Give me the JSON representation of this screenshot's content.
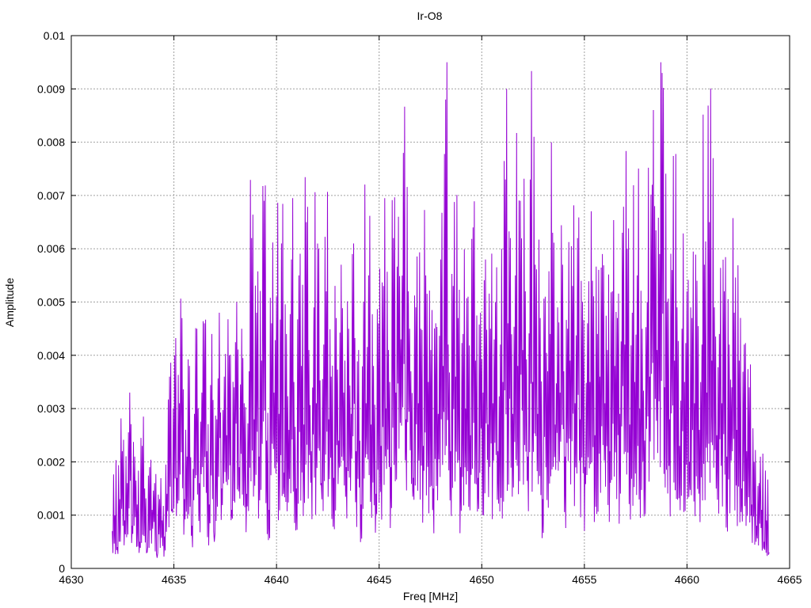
{
  "chart_data": {
    "type": "line",
    "title": "Ir-O8",
    "xlabel": "Freq [MHz]",
    "ylabel": "Amplitude",
    "xlim": [
      4630,
      4665
    ],
    "ylim": [
      0,
      0.01
    ],
    "xticks": [
      "4630",
      "4635",
      "4640",
      "4645",
      "4650",
      "4655",
      "4660",
      "4665"
    ],
    "yticks": [
      "0",
      "0.001",
      "0.002",
      "0.003",
      "0.004",
      "0.005",
      "0.006",
      "0.007",
      "0.008",
      "0.009",
      "0.01"
    ],
    "grid": true,
    "series": [
      {
        "color": "#9400d3",
        "x_start": 4632.0,
        "x_end": 4664.0,
        "note_values": "dense noisy spectrum; values listed are approximate sampled amplitudes",
        "values": [
          0.0007,
          0.001,
          0.0004,
          0.0013,
          0.0022,
          0.0009,
          0.0016,
          0.0033,
          0.0008,
          0.0021,
          0.0012,
          0.0005,
          0.0023,
          0.0015,
          0.0003,
          0.0019,
          0.0011,
          0.0016,
          0.0002,
          0.0013,
          0.0009,
          0.0006,
          0.0014,
          0.0036,
          0.0011,
          0.004,
          0.0017,
          0.0031,
          0.0047,
          0.0013,
          0.0021,
          0.0038,
          0.0008,
          0.0029,
          0.0045,
          0.0016,
          0.0033,
          0.0046,
          0.0022,
          0.0012,
          0.0044,
          0.0005,
          0.0028,
          0.0048,
          0.0015,
          0.0036,
          0.0025,
          0.004,
          0.0011,
          0.0034,
          0.005,
          0.0019,
          0.0045,
          0.0031,
          0.0014,
          0.0037,
          0.0062,
          0.0028,
          0.0048,
          0.0021,
          0.0039,
          0.0069,
          0.0024,
          0.0011,
          0.0046,
          0.0033,
          0.0051,
          0.0029,
          0.0061,
          0.0018,
          0.0044,
          0.0026,
          0.0058,
          0.0035,
          0.0015,
          0.0055,
          0.0038,
          0.0027,
          0.0065,
          0.0041,
          0.0022,
          0.0049,
          0.0031,
          0.006,
          0.0016,
          0.0042,
          0.0052,
          0.0028,
          0.0036,
          0.0017,
          0.0047,
          0.0024,
          0.0057,
          0.0033,
          0.0019,
          0.0045,
          0.0029,
          0.0061,
          0.0022,
          0.0041,
          0.0012,
          0.005,
          0.0031,
          0.0055,
          0.0027,
          0.0038,
          0.0014,
          0.0046,
          0.0023,
          0.0053,
          0.003,
          0.0041,
          0.0019,
          0.0062,
          0.0033,
          0.0066,
          0.0043,
          0.0078,
          0.0028,
          0.0052,
          0.0037,
          0.0017,
          0.0049,
          0.0031,
          0.0045,
          0.0023,
          0.0055,
          0.0035,
          0.0041,
          0.0015,
          0.0046,
          0.0029,
          0.0058,
          0.0038,
          0.0088,
          0.0042,
          0.0022,
          0.0053,
          0.0036,
          0.0047,
          0.0019,
          0.0044,
          0.003,
          0.0051,
          0.0025,
          0.0064,
          0.0039,
          0.0017,
          0.0048,
          0.0033,
          0.0058,
          0.0027,
          0.0045,
          0.0031,
          0.005,
          0.0022,
          0.0042,
          0.0035,
          0.0073,
          0.0046,
          0.0062,
          0.0029,
          0.0055,
          0.0038,
          0.0069,
          0.0041,
          0.0052,
          0.0021,
          0.0073,
          0.0035,
          0.0057,
          0.0029,
          0.0047,
          0.0013,
          0.0051,
          0.0037,
          0.0044,
          0.0063,
          0.0027,
          0.0049,
          0.0033,
          0.0057,
          0.0021,
          0.0045,
          0.0039,
          0.0053,
          0.0031,
          0.0062,
          0.0028,
          0.005,
          0.0019,
          0.0046,
          0.0035,
          0.0054,
          0.0025,
          0.0044,
          0.0036,
          0.0059,
          0.0031,
          0.0041,
          0.0022,
          0.0052,
          0.0038,
          0.0047,
          0.0029,
          0.0063,
          0.0042,
          0.006,
          0.0027,
          0.0048,
          0.0035,
          0.0055,
          0.003,
          0.0045,
          0.0024,
          0.005,
          0.0036,
          0.0072,
          0.0068,
          0.0041,
          0.0059,
          0.0093,
          0.0034,
          0.005,
          0.0028,
          0.0056,
          0.0039,
          0.0049,
          0.0023,
          0.0045,
          0.0035,
          0.0052,
          0.002,
          0.0047,
          0.0031,
          0.0054,
          0.0026,
          0.0042,
          0.0057,
          0.0033,
          0.0065,
          0.0039,
          0.0049,
          0.0025,
          0.0044,
          0.0031,
          0.0052,
          0.0021,
          0.0042,
          0.0034,
          0.0048,
          0.0026,
          0.0039,
          0.0015,
          0.0042,
          0.0022,
          0.0034,
          0.0012,
          0.002,
          0.0008,
          0.0016,
          0.0011,
          0.0005,
          0.0009,
          0.0003
        ]
      }
    ]
  }
}
